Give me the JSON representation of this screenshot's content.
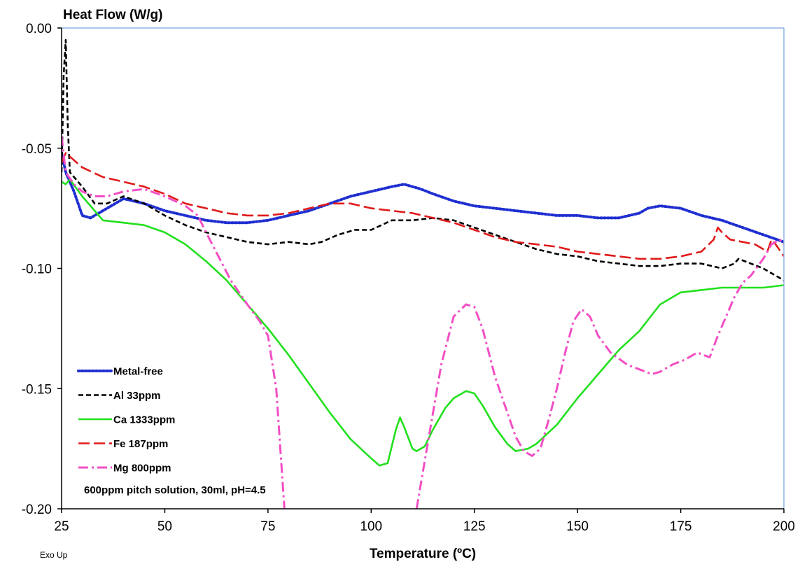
{
  "chart_data": {
    "type": "line",
    "ylabel": "Heat Flow (W/g)",
    "xlabel": "Temperature (ºC)",
    "corner_note": "Exo Up",
    "annotation": "600ppm pitch solution, 30ml, pH=4.5",
    "xlim": [
      25,
      200
    ],
    "ylim": [
      -0.2,
      0.0
    ],
    "x_ticks": [
      25,
      50,
      75,
      100,
      125,
      150,
      175,
      200
    ],
    "x_tick_labels": [
      "25",
      "50",
      "75",
      "100",
      "125",
      "150",
      "175",
      "200"
    ],
    "y_ticks": [
      0.0,
      -0.05,
      -0.1,
      -0.15,
      -0.2
    ],
    "y_tick_labels": [
      "0.00",
      "-0.05",
      "-0.10",
      "-0.15",
      "-0.20"
    ],
    "grid": false,
    "legend_position": "bottom-left",
    "series": [
      {
        "name": "Metal-free",
        "color": "#1f2fd0",
        "style": "dotted",
        "points": [
          [
            25,
            -0.052
          ],
          [
            26,
            -0.06
          ],
          [
            28,
            -0.068
          ],
          [
            30,
            -0.078
          ],
          [
            32,
            -0.079
          ],
          [
            35,
            -0.076
          ],
          [
            40,
            -0.071
          ],
          [
            45,
            -0.073
          ],
          [
            50,
            -0.076
          ],
          [
            55,
            -0.078
          ],
          [
            60,
            -0.08
          ],
          [
            65,
            -0.081
          ],
          [
            70,
            -0.081
          ],
          [
            75,
            -0.08
          ],
          [
            80,
            -0.078
          ],
          [
            85,
            -0.076
          ],
          [
            90,
            -0.073
          ],
          [
            95,
            -0.07
          ],
          [
            100,
            -0.068
          ],
          [
            105,
            -0.066
          ],
          [
            108,
            -0.065
          ],
          [
            112,
            -0.067
          ],
          [
            115,
            -0.069
          ],
          [
            120,
            -0.072
          ],
          [
            125,
            -0.074
          ],
          [
            130,
            -0.075
          ],
          [
            135,
            -0.076
          ],
          [
            140,
            -0.077
          ],
          [
            145,
            -0.078
          ],
          [
            150,
            -0.078
          ],
          [
            155,
            -0.079
          ],
          [
            160,
            -0.079
          ],
          [
            165,
            -0.077
          ],
          [
            167,
            -0.075
          ],
          [
            170,
            -0.074
          ],
          [
            175,
            -0.075
          ],
          [
            180,
            -0.078
          ],
          [
            185,
            -0.08
          ],
          [
            190,
            -0.083
          ],
          [
            195,
            -0.086
          ],
          [
            200,
            -0.089
          ]
        ]
      },
      {
        "name": "Al 33ppm",
        "color": "#000000",
        "style": "dashed",
        "points": [
          [
            25,
            -0.06
          ],
          [
            25.5,
            -0.02
          ],
          [
            26,
            -0.005
          ],
          [
            26.5,
            -0.04
          ],
          [
            27,
            -0.06
          ],
          [
            30,
            -0.066
          ],
          [
            33,
            -0.073
          ],
          [
            36,
            -0.073
          ],
          [
            40,
            -0.07
          ],
          [
            45,
            -0.073
          ],
          [
            50,
            -0.078
          ],
          [
            55,
            -0.082
          ],
          [
            60,
            -0.085
          ],
          [
            65,
            -0.087
          ],
          [
            70,
            -0.089
          ],
          [
            75,
            -0.09
          ],
          [
            80,
            -0.089
          ],
          [
            85,
            -0.09
          ],
          [
            88,
            -0.089
          ],
          [
            92,
            -0.086
          ],
          [
            96,
            -0.084
          ],
          [
            100,
            -0.084
          ],
          [
            105,
            -0.08
          ],
          [
            110,
            -0.08
          ],
          [
            115,
            -0.079
          ],
          [
            120,
            -0.08
          ],
          [
            125,
            -0.083
          ],
          [
            130,
            -0.086
          ],
          [
            135,
            -0.089
          ],
          [
            140,
            -0.092
          ],
          [
            145,
            -0.094
          ],
          [
            150,
            -0.095
          ],
          [
            155,
            -0.097
          ],
          [
            160,
            -0.098
          ],
          [
            165,
            -0.099
          ],
          [
            170,
            -0.099
          ],
          [
            175,
            -0.098
          ],
          [
            180,
            -0.098
          ],
          [
            185,
            -0.1
          ],
          [
            188,
            -0.098
          ],
          [
            189,
            -0.096
          ],
          [
            192,
            -0.098
          ],
          [
            195,
            -0.1
          ],
          [
            200,
            -0.105
          ]
        ]
      },
      {
        "name": "Ca 1333ppm",
        "color": "#22e01e",
        "style": "solid",
        "points": [
          [
            25,
            -0.064
          ],
          [
            26,
            -0.065
          ],
          [
            27,
            -0.063
          ],
          [
            30,
            -0.07
          ],
          [
            33,
            -0.076
          ],
          [
            35,
            -0.08
          ],
          [
            40,
            -0.081
          ],
          [
            45,
            -0.082
          ],
          [
            50,
            -0.085
          ],
          [
            55,
            -0.09
          ],
          [
            60,
            -0.097
          ],
          [
            65,
            -0.105
          ],
          [
            70,
            -0.115
          ],
          [
            75,
            -0.125
          ],
          [
            80,
            -0.136
          ],
          [
            85,
            -0.148
          ],
          [
            90,
            -0.16
          ],
          [
            95,
            -0.171
          ],
          [
            100,
            -0.179
          ],
          [
            102,
            -0.182
          ],
          [
            104,
            -0.181
          ],
          [
            106,
            -0.167
          ],
          [
            107,
            -0.162
          ],
          [
            108,
            -0.166
          ],
          [
            110,
            -0.175
          ],
          [
            111,
            -0.176
          ],
          [
            113,
            -0.174
          ],
          [
            115,
            -0.167
          ],
          [
            118,
            -0.158
          ],
          [
            120,
            -0.154
          ],
          [
            123,
            -0.151
          ],
          [
            125,
            -0.152
          ],
          [
            127,
            -0.157
          ],
          [
            130,
            -0.166
          ],
          [
            133,
            -0.173
          ],
          [
            135,
            -0.176
          ],
          [
            138,
            -0.175
          ],
          [
            140,
            -0.173
          ],
          [
            145,
            -0.165
          ],
          [
            150,
            -0.154
          ],
          [
            155,
            -0.144
          ],
          [
            160,
            -0.134
          ],
          [
            165,
            -0.126
          ],
          [
            170,
            -0.115
          ],
          [
            175,
            -0.11
          ],
          [
            180,
            -0.109
          ],
          [
            185,
            -0.108
          ],
          [
            190,
            -0.108
          ],
          [
            195,
            -0.108
          ],
          [
            200,
            -0.107
          ]
        ]
      },
      {
        "name": "Fe 187ppm",
        "color": "#e01a1a",
        "style": "long-dash",
        "points": [
          [
            25,
            -0.056
          ],
          [
            26,
            -0.052
          ],
          [
            28,
            -0.055
          ],
          [
            30,
            -0.058
          ],
          [
            35,
            -0.062
          ],
          [
            40,
            -0.064
          ],
          [
            45,
            -0.066
          ],
          [
            50,
            -0.069
          ],
          [
            55,
            -0.073
          ],
          [
            60,
            -0.075
          ],
          [
            65,
            -0.077
          ],
          [
            70,
            -0.078
          ],
          [
            75,
            -0.078
          ],
          [
            80,
            -0.077
          ],
          [
            85,
            -0.075
          ],
          [
            90,
            -0.073
          ],
          [
            95,
            -0.073
          ],
          [
            100,
            -0.075
          ],
          [
            105,
            -0.076
          ],
          [
            110,
            -0.077
          ],
          [
            115,
            -0.079
          ],
          [
            120,
            -0.081
          ],
          [
            125,
            -0.084
          ],
          [
            130,
            -0.087
          ],
          [
            135,
            -0.089
          ],
          [
            140,
            -0.09
          ],
          [
            145,
            -0.091
          ],
          [
            150,
            -0.093
          ],
          [
            155,
            -0.094
          ],
          [
            160,
            -0.095
          ],
          [
            165,
            -0.096
          ],
          [
            170,
            -0.096
          ],
          [
            175,
            -0.095
          ],
          [
            180,
            -0.093
          ],
          [
            183,
            -0.088
          ],
          [
            184,
            -0.083
          ],
          [
            185,
            -0.085
          ],
          [
            187,
            -0.088
          ],
          [
            190,
            -0.089
          ],
          [
            193,
            -0.09
          ],
          [
            196,
            -0.093
          ],
          [
            197,
            -0.088
          ],
          [
            198,
            -0.09
          ],
          [
            200,
            -0.095
          ]
        ]
      },
      {
        "name": "Mg 800ppm",
        "color": "#f24fc4",
        "style": "dash-dot",
        "points": [
          [
            25,
            -0.045
          ],
          [
            26,
            -0.06
          ],
          [
            28,
            -0.065
          ],
          [
            30,
            -0.068
          ],
          [
            33,
            -0.07
          ],
          [
            36,
            -0.07
          ],
          [
            40,
            -0.068
          ],
          [
            45,
            -0.067
          ],
          [
            50,
            -0.07
          ],
          [
            55,
            -0.074
          ],
          [
            58,
            -0.078
          ],
          [
            60,
            -0.085
          ],
          [
            63,
            -0.095
          ],
          [
            66,
            -0.105
          ],
          [
            70,
            -0.115
          ],
          [
            73,
            -0.122
          ],
          [
            75,
            -0.128
          ],
          [
            77,
            -0.15
          ],
          [
            78,
            -0.175
          ],
          [
            79,
            -0.2
          ]
        ]
      },
      {
        "name": "Mg 800ppm",
        "color": "#f24fc4",
        "style": "dash-dot",
        "points": [
          [
            111,
            -0.2
          ],
          [
            113,
            -0.18
          ],
          [
            115,
            -0.16
          ],
          [
            117,
            -0.14
          ],
          [
            120,
            -0.12
          ],
          [
            123,
            -0.115
          ],
          [
            125,
            -0.116
          ],
          [
            127,
            -0.125
          ],
          [
            130,
            -0.145
          ],
          [
            133,
            -0.16
          ],
          [
            135,
            -0.17
          ],
          [
            137,
            -0.176
          ],
          [
            139,
            -0.178
          ],
          [
            141,
            -0.175
          ],
          [
            143,
            -0.163
          ],
          [
            145,
            -0.15
          ],
          [
            147,
            -0.135
          ],
          [
            149,
            -0.122
          ],
          [
            151,
            -0.117
          ],
          [
            153,
            -0.12
          ],
          [
            155,
            -0.128
          ],
          [
            158,
            -0.135
          ],
          [
            162,
            -0.14
          ],
          [
            165,
            -0.142
          ],
          [
            168,
            -0.144
          ],
          [
            170,
            -0.143
          ],
          [
            173,
            -0.14
          ],
          [
            176,
            -0.138
          ],
          [
            179,
            -0.135
          ],
          [
            182,
            -0.137
          ],
          [
            184,
            -0.128
          ],
          [
            186,
            -0.12
          ],
          [
            188,
            -0.112
          ],
          [
            190,
            -0.106
          ],
          [
            192,
            -0.103
          ],
          [
            195,
            -0.096
          ],
          [
            197,
            -0.09
          ],
          [
            199,
            -0.088
          ],
          [
            200,
            -0.09
          ]
        ]
      }
    ],
    "legend": [
      {
        "name": "Metal-free",
        "color": "#1f2fd0",
        "style": "dotted"
      },
      {
        "name": "Al 33ppm",
        "color": "#000000",
        "style": "dashed"
      },
      {
        "name": "Ca 1333ppm",
        "color": "#22e01e",
        "style": "solid"
      },
      {
        "name": "Fe 187ppm",
        "color": "#e01a1a",
        "style": "long-dash"
      },
      {
        "name": "Mg 800ppm",
        "color": "#f24fc4",
        "style": "dash-dot"
      }
    ]
  }
}
